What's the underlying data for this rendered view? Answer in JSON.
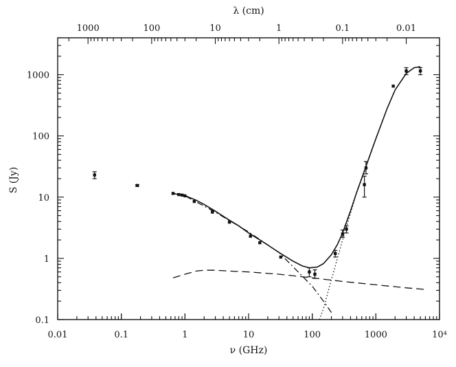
{
  "chart_data": {
    "type": "scatter",
    "title": "",
    "xlabel": "ν (GHz)",
    "ylabel": "S (Jy)",
    "top_xlabel": "λ (cm)",
    "x_scale": "log",
    "y_scale": "log",
    "xlim": [
      0.01,
      10000
    ],
    "ylim": [
      0.1,
      4000
    ],
    "grid": false,
    "x_ticks": [
      {
        "value": 0.01,
        "label": "0.01"
      },
      {
        "value": 0.1,
        "label": "0.1"
      },
      {
        "value": 1,
        "label": "1"
      },
      {
        "value": 10,
        "label": "10"
      },
      {
        "value": 100,
        "label": "100"
      },
      {
        "value": 1000,
        "label": "1000"
      },
      {
        "value": 10000,
        "label": "10⁴"
      }
    ],
    "y_ticks": [
      {
        "value": 0.1,
        "label": "0.1"
      },
      {
        "value": 1,
        "label": "1"
      },
      {
        "value": 10,
        "label": "10"
      },
      {
        "value": 100,
        "label": "100"
      },
      {
        "value": 1000,
        "label": "1000"
      }
    ],
    "top_ticks": [
      {
        "lambda_cm": 1000,
        "label": "1000"
      },
      {
        "lambda_cm": 100,
        "label": "100"
      },
      {
        "lambda_cm": 10,
        "label": "10"
      },
      {
        "lambda_cm": 1,
        "label": "1"
      },
      {
        "lambda_cm": 0.1,
        "label": "0.1"
      },
      {
        "lambda_cm": 0.01,
        "label": "0.01"
      }
    ],
    "observations": [
      {
        "x": 0.038,
        "y": 23,
        "yerr_lo": 20,
        "yerr_hi": 26
      },
      {
        "x": 0.178,
        "y": 15.5,
        "yerr_lo": 15,
        "yerr_hi": 16
      },
      {
        "x": 0.65,
        "y": 11.5
      },
      {
        "x": 0.8,
        "y": 11
      },
      {
        "x": 0.9,
        "y": 10.8
      },
      {
        "x": 1.0,
        "y": 10.5
      },
      {
        "x": 1.4,
        "y": 8.5
      },
      {
        "x": 2.7,
        "y": 5.7
      },
      {
        "x": 5.0,
        "y": 3.9
      },
      {
        "x": 10.7,
        "y": 2.3
      },
      {
        "x": 15,
        "y": 1.8
      },
      {
        "x": 32,
        "y": 1.05
      },
      {
        "x": 90,
        "y": 0.6,
        "yerr_lo": 0.5,
        "yerr_hi": 0.7
      },
      {
        "x": 110,
        "y": 0.55,
        "yerr_lo": 0.47,
        "yerr_hi": 0.65
      },
      {
        "x": 230,
        "y": 1.2,
        "yerr_lo": 1.05,
        "yerr_hi": 1.35
      },
      {
        "x": 300,
        "y": 2.5,
        "yerr_lo": 2.2,
        "yerr_hi": 2.9
      },
      {
        "x": 345,
        "y": 3.0,
        "yerr_lo": 2.6,
        "yerr_hi": 3.4
      },
      {
        "x": 660,
        "y": 16,
        "yerr_lo": 10,
        "yerr_hi": 22
      },
      {
        "x": 700,
        "y": 30,
        "yerr_lo": 24,
        "yerr_hi": 38
      },
      {
        "x": 1875,
        "y": 650
      },
      {
        "x": 3000,
        "y": 1150,
        "yerr_lo": 1000,
        "yerr_hi": 1300
      },
      {
        "x": 5000,
        "y": 1150,
        "yerr_lo": 1000,
        "yerr_hi": 1300
      }
    ],
    "model_curves": [
      {
        "style": "solid",
        "x": [
          0.65,
          1,
          1.5,
          2,
          3,
          5,
          7,
          10,
          15,
          20,
          30,
          50,
          70,
          90,
          120,
          150,
          200,
          250,
          300,
          400,
          500,
          700,
          1000,
          1500,
          2000,
          3000,
          4000,
          5000
        ],
        "y": [
          11.5,
          10.6,
          8.9,
          7.6,
          5.9,
          4.2,
          3.4,
          2.6,
          2.0,
          1.65,
          1.25,
          0.9,
          0.75,
          0.7,
          0.72,
          0.82,
          1.15,
          1.7,
          2.6,
          6.0,
          12,
          32,
          90,
          280,
          560,
          1050,
          1300,
          1350
        ]
      },
      {
        "style": "dash-dot",
        "x": [
          0.65,
          1,
          3,
          10,
          30,
          100,
          150,
          200
        ],
        "y": [
          11.5,
          10.5,
          5.7,
          2.7,
          1.25,
          0.35,
          0.2,
          0.13
        ]
      },
      {
        "style": "dashed",
        "x": [
          0.65,
          1,
          1.5,
          2,
          3,
          5,
          10,
          30,
          100,
          300,
          1000,
          3000,
          6000
        ],
        "y": [
          0.48,
          0.55,
          0.62,
          0.64,
          0.64,
          0.62,
          0.6,
          0.55,
          0.48,
          0.42,
          0.37,
          0.33,
          0.31
        ]
      },
      {
        "style": "dotted",
        "x": [
          130,
          150,
          200,
          300,
          500,
          700
        ],
        "y": [
          0.1,
          0.15,
          0.45,
          2.0,
          12,
          30
        ]
      }
    ]
  }
}
